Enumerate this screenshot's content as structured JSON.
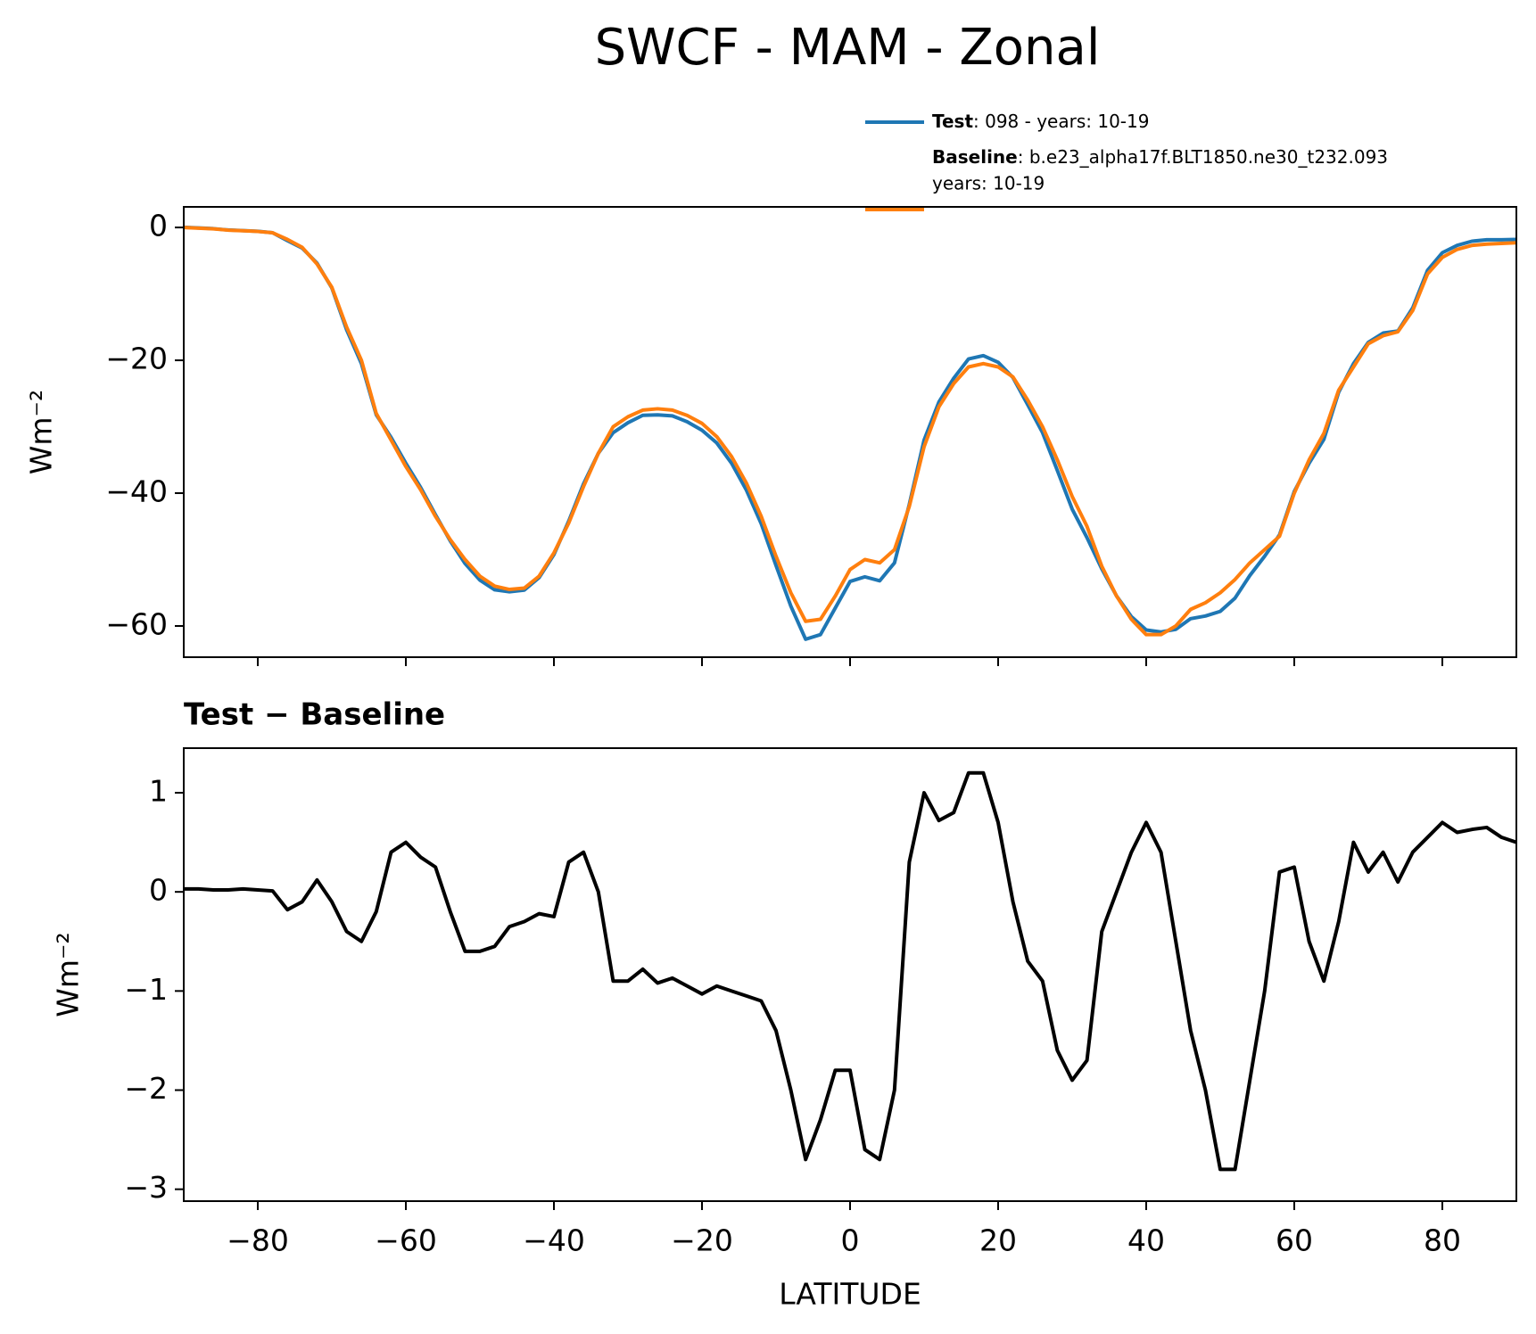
{
  "chart_data": [
    {
      "type": "line",
      "title": "SWCF - MAM - Zonal",
      "ylabel": "Wm⁻²",
      "x": [
        -90,
        -88,
        -86,
        -84,
        -82,
        -80,
        -78,
        -76,
        -74,
        -72,
        -70,
        -68,
        -66,
        -64,
        -62,
        -60,
        -58,
        -56,
        -54,
        -52,
        -50,
        -48,
        -46,
        -44,
        -42,
        -40,
        -38,
        -36,
        -34,
        -32,
        -30,
        -28,
        -26,
        -24,
        -22,
        -20,
        -18,
        -16,
        -14,
        -12,
        -10,
        -8,
        -6,
        -4,
        -2,
        0,
        2,
        4,
        6,
        8,
        10,
        12,
        14,
        16,
        18,
        20,
        22,
        24,
        26,
        28,
        30,
        32,
        34,
        36,
        38,
        40,
        42,
        44,
        46,
        48,
        50,
        52,
        54,
        56,
        58,
        60,
        62,
        64,
        66,
        68,
        70,
        72,
        74,
        76,
        78,
        80,
        82,
        84,
        86,
        88,
        90
      ],
      "series": [
        {
          "name": "Test",
          "description": [
            ": 098 - years: 10-19"
          ],
          "color": "#1f77b4",
          "values": [
            0.03,
            -0.07,
            -0.18,
            -0.38,
            -0.47,
            -0.58,
            -0.79,
            -1.98,
            -3.1,
            -5.38,
            -9.1,
            -15.4,
            -20.5,
            -28.2,
            -31.6,
            -35.5,
            -39.15,
            -43.25,
            -47.2,
            -50.6,
            -53.1,
            -54.55,
            -54.85,
            -54.6,
            -52.72,
            -49.25,
            -44.2,
            -38.6,
            -34,
            -30.9,
            -29.4,
            -28.28,
            -28.22,
            -28.37,
            -29.25,
            -30.53,
            -32.45,
            -35.5,
            -39.55,
            -44.6,
            -50.9,
            -57,
            -62,
            -61.3,
            -57.3,
            -53.3,
            -52.6,
            -53.2,
            -50.5,
            -41.7,
            -32,
            -26.28,
            -22.7,
            -19.8,
            -19.3,
            -20.3,
            -22.6,
            -26.7,
            -30.9,
            -36.6,
            -42.4,
            -46.7,
            -51.4,
            -55.5,
            -58.6,
            -60.6,
            -60.9,
            -60.5,
            -58.9,
            -58.5,
            -57.8,
            -55.8,
            -52.4,
            -49.5,
            -46.3,
            -39.75,
            -35.5,
            -31.9,
            -24.8,
            -20.5,
            -17.3,
            -15.9,
            -15.6,
            -12.1,
            -6.45,
            -3.8,
            -2.7,
            -2.07,
            -1.85,
            -1.85,
            -1.8
          ]
        },
        {
          "name": "Baseline",
          "description": [
            ": b.e23_alpha17f.BLT1850.ne30_t232.093",
            "years: 10-19"
          ],
          "color": "#ff7f0e",
          "values": [
            0,
            -0.1,
            -0.2,
            -0.4,
            -0.5,
            -0.6,
            -0.8,
            -1.8,
            -3,
            -5.5,
            -9,
            -15,
            -20,
            -28,
            -32,
            -36,
            -39.5,
            -43.5,
            -47,
            -50,
            -52.5,
            -54,
            -54.5,
            -54.3,
            -52.5,
            -49,
            -44.5,
            -39,
            -34,
            -30,
            -28.5,
            -27.5,
            -27.3,
            -27.5,
            -28.3,
            -29.5,
            -31.5,
            -34.5,
            -38.5,
            -43.5,
            -49.5,
            -55,
            -59.3,
            -59,
            -55.5,
            -51.5,
            -50,
            -50.5,
            -48.5,
            -42,
            -33,
            -27,
            -23.5,
            -21,
            -20.5,
            -21,
            -22.5,
            -26,
            -30,
            -35,
            -40.5,
            -45,
            -51,
            -55.5,
            -59,
            -61.3,
            -61.3,
            -60,
            -57.5,
            -56.5,
            -55,
            -53,
            -50.5,
            -48.5,
            -46.5,
            -40,
            -35,
            -31,
            -24.5,
            -21,
            -17.5,
            -16.3,
            -15.7,
            -12.5,
            -7,
            -4.5,
            -3.3,
            -2.7,
            -2.5,
            -2.4,
            -2.3
          ]
        }
      ],
      "xlim": [
        -90,
        90
      ],
      "xticks": [
        -80,
        -60,
        -40,
        -20,
        0,
        20,
        40,
        60,
        80
      ],
      "ylim": [
        -64.7,
        3.1
      ],
      "yticks": [
        {
          "value": -60,
          "label": "−60"
        },
        {
          "value": -40,
          "label": "−40"
        },
        {
          "value": -20,
          "label": "−20"
        },
        0
      ]
    },
    {
      "type": "line",
      "title": "Test − Baseline",
      "ylabel": "Wm⁻²",
      "xlabel": "LATITUDE",
      "x": [
        -90,
        -88,
        -86,
        -84,
        -82,
        -80,
        -78,
        -76,
        -74,
        -72,
        -70,
        -68,
        -66,
        -64,
        -62,
        -60,
        -58,
        -56,
        -54,
        -52,
        -50,
        -48,
        -46,
        -44,
        -42,
        -40,
        -38,
        -36,
        -34,
        -32,
        -30,
        -28,
        -26,
        -24,
        -22,
        -20,
        -18,
        -16,
        -14,
        -12,
        -10,
        -8,
        -6,
        -4,
        -2,
        0,
        2,
        4,
        6,
        8,
        10,
        12,
        14,
        16,
        18,
        20,
        22,
        24,
        26,
        28,
        30,
        32,
        34,
        36,
        38,
        40,
        42,
        44,
        46,
        48,
        50,
        52,
        54,
        56,
        58,
        60,
        62,
        64,
        66,
        68,
        70,
        72,
        74,
        76,
        78,
        80,
        82,
        84,
        86,
        88,
        90
      ],
      "series": [
        {
          "color": "#000000",
          "values": [
            0.03,
            0.03,
            0.02,
            0.02,
            0.03,
            0.02,
            0.01,
            -0.18,
            -0.1,
            0.12,
            -0.1,
            -0.4,
            -0.5,
            -0.2,
            0.4,
            0.5,
            0.35,
            0.25,
            -0.2,
            -0.6,
            -0.6,
            -0.55,
            -0.35,
            -0.3,
            -0.22,
            -0.25,
            0.3,
            0.4,
            0,
            -0.9,
            -0.9,
            -0.78,
            -0.92,
            -0.87,
            -0.95,
            -1.03,
            -0.95,
            -1,
            -1.05,
            -1.1,
            -1.4,
            -2,
            -2.7,
            -2.3,
            -1.8,
            -1.8,
            -2.6,
            -2.7,
            -2,
            0.3,
            1,
            0.72,
            0.8,
            1.2,
            1.2,
            0.7,
            -0.1,
            -0.7,
            -0.9,
            -1.6,
            -1.9,
            -1.7,
            -0.4,
            0,
            0.4,
            0.7,
            0.4,
            -0.5,
            -1.4,
            -2,
            -2.8,
            -2.8,
            -1.9,
            -1,
            0.2,
            0.25,
            -0.5,
            -0.9,
            -0.3,
            0.5,
            0.2,
            0.4,
            0.1,
            0.4,
            0.55,
            0.7,
            0.6,
            0.63,
            0.65,
            0.55,
            0.5
          ]
        }
      ],
      "xlim": [
        -90,
        90
      ],
      "xticks": [
        {
          "value": -80,
          "label": "−80"
        },
        {
          "value": -60,
          "label": "−60"
        },
        {
          "value": -40,
          "label": "−40"
        },
        {
          "value": -20,
          "label": "−20"
        },
        0,
        20,
        40,
        60,
        80
      ],
      "ylim": [
        -3.12,
        1.45
      ],
      "yticks": [
        {
          "value": -3,
          "label": "−3"
        },
        {
          "value": -2,
          "label": "−2"
        },
        {
          "value": -1,
          "label": "−1"
        },
        0,
        1
      ]
    }
  ]
}
